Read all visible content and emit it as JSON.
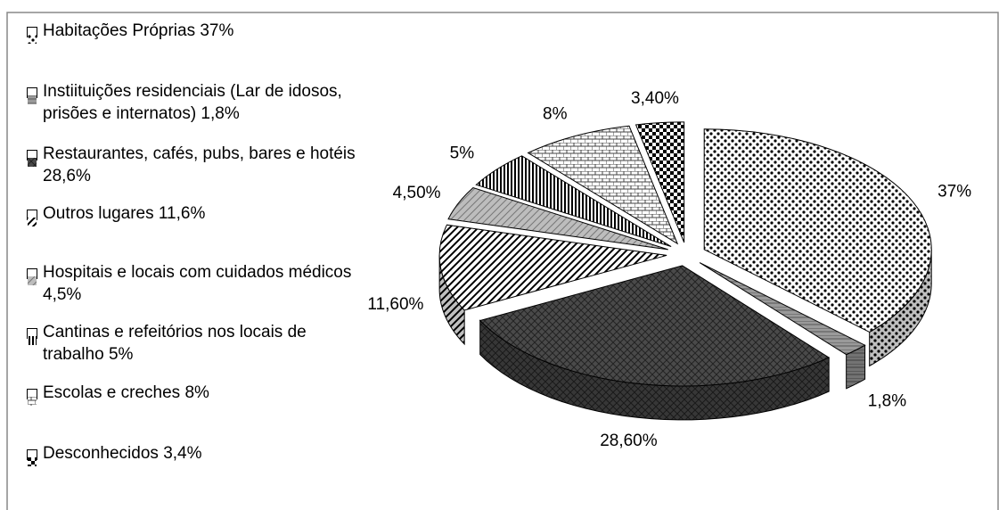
{
  "chart_data": {
    "type": "pie",
    "categories": [
      "Habitações Próprias  37%",
      "Instiituições residenciais (Lar de idosos, prisões e internatos) 1,8%",
      "Restaurantes, cafés, pubs, bares e hotéis 28,6%",
      "Outros lugares 11,6%",
      "Hospitais e locais com cuidados médicos 4,5%",
      "Cantinas e refeitórios nos locais de trabalho 5%",
      "Escolas e creches 8%",
      "Desconhecidos 3,4%"
    ],
    "values": [
      37,
      1.8,
      28.6,
      11.6,
      4.5,
      5,
      8,
      3.4
    ],
    "value_labels": [
      "37%",
      "1,8%",
      "28,60%",
      "11,60%",
      "4,50%",
      "5%",
      "8%",
      "3,40%"
    ],
    "colors": [
      "#ffffff",
      "#9a9a9a",
      "#4a4a4a",
      "#ffffff",
      "#bdbdbd",
      "#ffffff",
      "#ffffff",
      "#ffffff"
    ],
    "legend": "left"
  }
}
